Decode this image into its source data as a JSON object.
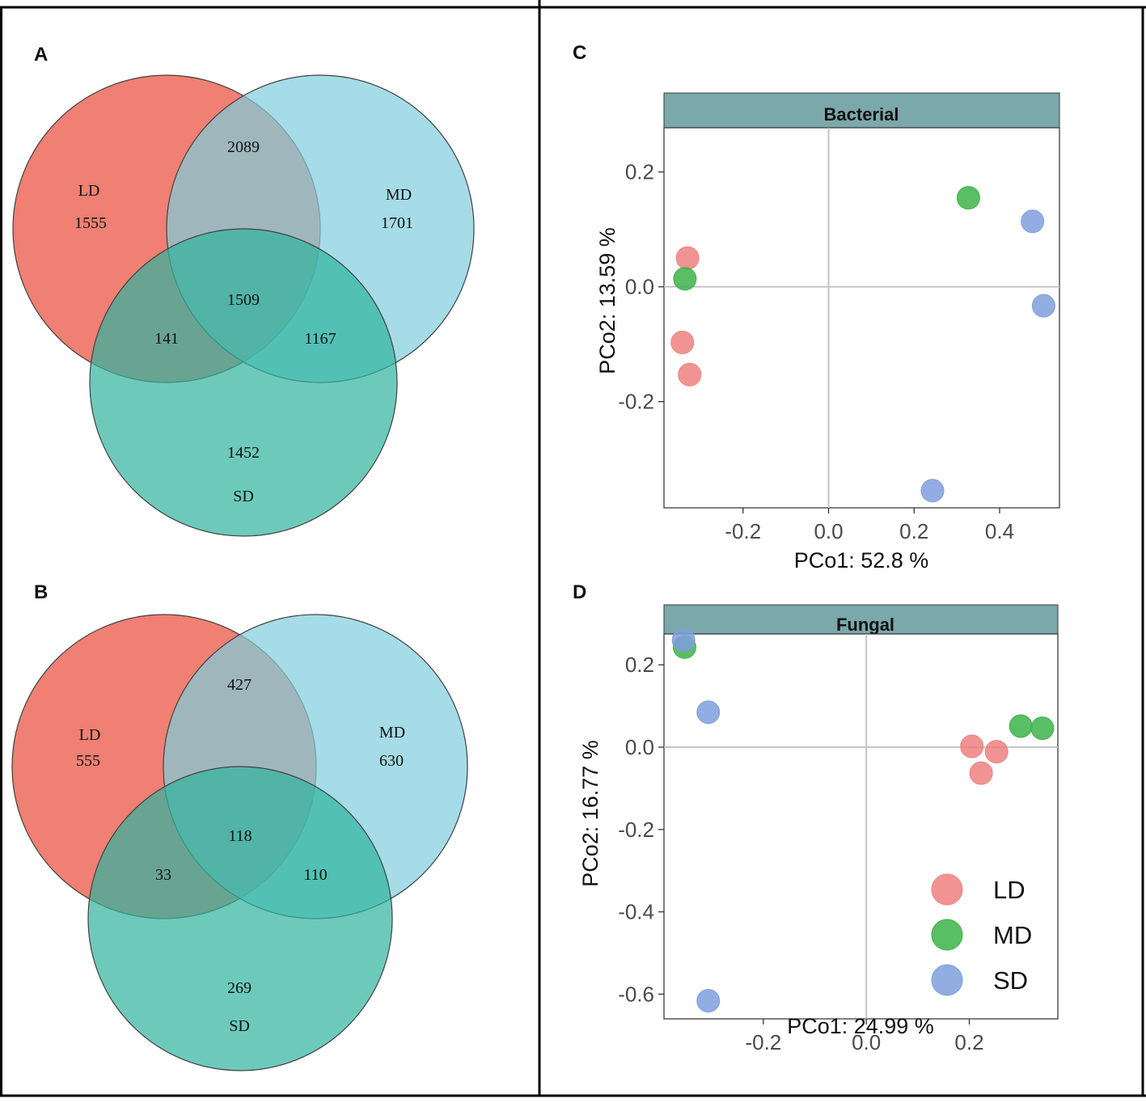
{
  "panels": {
    "A": {
      "letter": "A",
      "sets": {
        "LD": {
          "name": "LD",
          "color": "#EF8073"
        },
        "MD": {
          "name": "MD",
          "color": "#7FCDDD"
        },
        "SD": {
          "name": "SD",
          "color": "#2FB39E"
        }
      },
      "counts": {
        "LD_only": "1555",
        "MD_only": "1701",
        "SD_only": "1452",
        "LD_MD": "2089",
        "LD_SD": "141",
        "MD_SD": "1167",
        "all": "1509"
      }
    },
    "B": {
      "letter": "B",
      "sets": {
        "LD": {
          "name": "LD",
          "color": "#EF8073"
        },
        "MD": {
          "name": "MD",
          "color": "#7FCDDD"
        },
        "SD": {
          "name": "SD",
          "color": "#2FB39E"
        }
      },
      "counts": {
        "LD_only": "555",
        "MD_only": "630",
        "SD_only": "269",
        "LD_MD": "427",
        "LD_SD": "33",
        "MD_SD": "110",
        "all": "118"
      }
    },
    "C": {
      "letter": "C"
    },
    "D": {
      "letter": "D"
    }
  },
  "chart_data": [
    {
      "type": "venn",
      "panel": "A",
      "sets": [
        "LD",
        "MD",
        "SD"
      ],
      "regions": {
        "LD_only": 1555,
        "MD_only": 1701,
        "SD_only": 1452,
        "LD_MD": 2089,
        "LD_SD": 141,
        "MD_SD": 1167,
        "LD_MD_SD": 1509
      }
    },
    {
      "type": "venn",
      "panel": "B",
      "sets": [
        "LD",
        "MD",
        "SD"
      ],
      "regions": {
        "LD_only": 555,
        "MD_only": 630,
        "SD_only": 269,
        "LD_MD": 427,
        "LD_SD": 33,
        "MD_SD": 110,
        "LD_MD_SD": 118
      }
    },
    {
      "type": "scatter",
      "panel": "C",
      "title": "Bacterial",
      "xlabel": "PCo1: 52.8 %",
      "ylabel": "PCo2: 13.59 %",
      "xlim": [
        -0.385,
        0.54
      ],
      "ylim": [
        -0.385,
        0.277
      ],
      "xticks": [
        -0.2,
        0.0,
        0.2,
        0.4
      ],
      "xtick_labels": [
        "-0.2",
        "0.0",
        "0.2",
        "0.4"
      ],
      "yticks": [
        -0.2,
        0.0,
        0.2
      ],
      "ytick_labels": [
        "-0.2",
        "0.0",
        "0.2"
      ],
      "series": [
        {
          "name": "LD",
          "color": "#F08080",
          "x": [
            -0.33,
            -0.342,
            -0.325
          ],
          "y": [
            0.05,
            -0.097,
            -0.153
          ]
        },
        {
          "name": "MD",
          "color": "#3DB34A",
          "x": [
            -0.336,
            0.327
          ],
          "y": [
            0.014,
            0.155
          ]
        },
        {
          "name": "SD",
          "color": "#7F9FDD",
          "x": [
            0.477,
            0.503,
            0.243
          ],
          "y": [
            0.114,
            -0.033,
            -0.355
          ]
        }
      ]
    },
    {
      "type": "scatter",
      "panel": "D",
      "title": "Fungal",
      "xlabel": "PCo1: 24.99 %",
      "ylabel": "PCo2: 16.77 %",
      "xlim": [
        -0.393,
        0.372
      ],
      "ylim": [
        -0.66,
        0.275
      ],
      "xticks": [
        -0.2,
        0.0,
        0.2
      ],
      "xtick_labels": [
        "-0.2",
        "0.0",
        "0.2"
      ],
      "yticks": [
        -0.6,
        -0.4,
        -0.2,
        0.0,
        0.2
      ],
      "ytick_labels": [
        "-0.6",
        "-0.4",
        "-0.2",
        "0.0",
        "0.2"
      ],
      "legend": {
        "position": "bottom-right",
        "entries": [
          "LD",
          "MD",
          "SD"
        ]
      },
      "series": [
        {
          "name": "LD",
          "color": "#F08080",
          "x": [
            0.205,
            0.253,
            0.223
          ],
          "y": [
            0.002,
            -0.011,
            -0.063
          ]
        },
        {
          "name": "MD",
          "color": "#3DB34A",
          "x": [
            -0.353,
            0.3,
            0.342
          ],
          "y": [
            0.243,
            0.051,
            0.046
          ]
        },
        {
          "name": "SD",
          "color": "#7F9FDD",
          "x": [
            -0.355,
            -0.307,
            -0.307
          ],
          "y": [
            0.26,
            0.085,
            -0.616
          ]
        }
      ]
    }
  ]
}
